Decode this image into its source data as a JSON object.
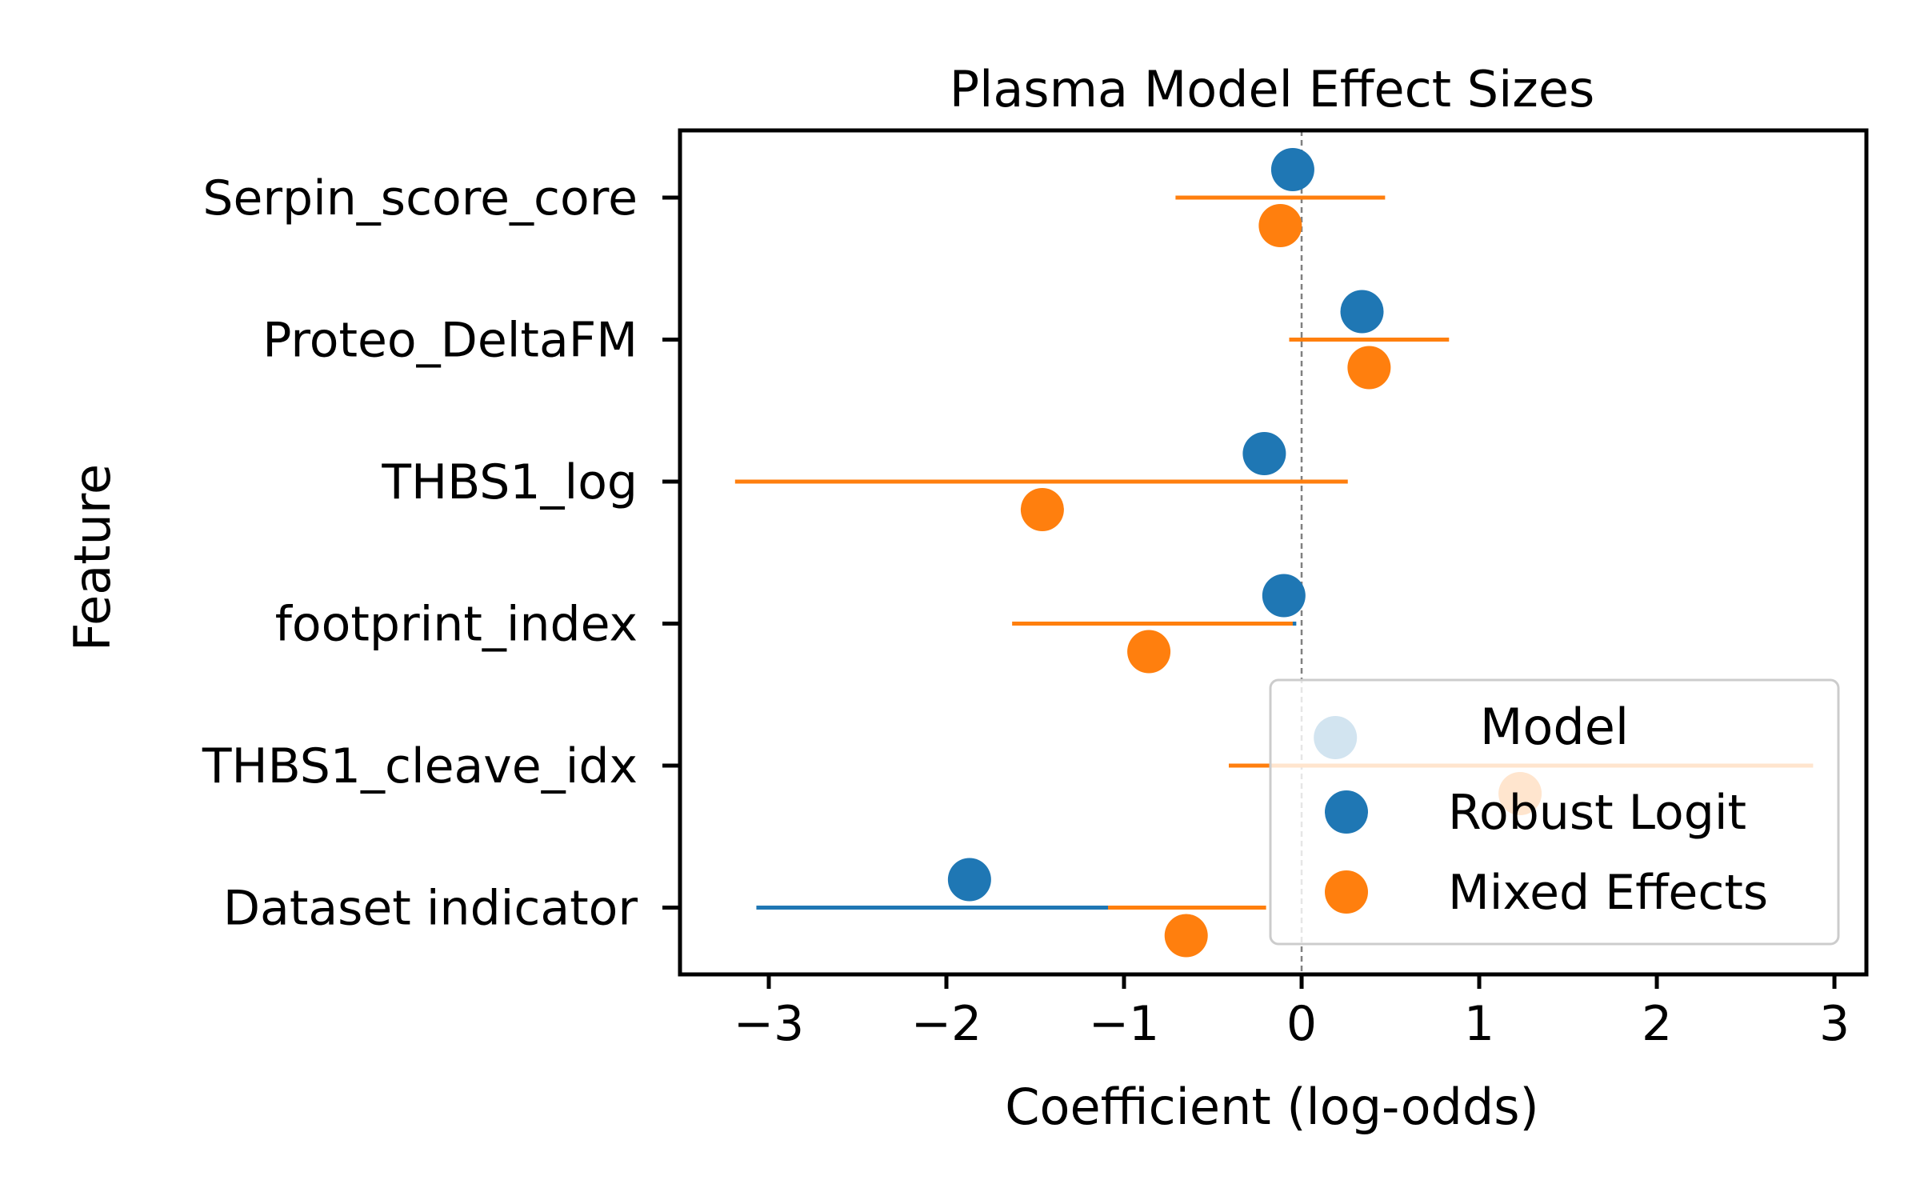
{
  "chart_data": {
    "type": "scatter",
    "title": "Plasma Model Effect Sizes",
    "xlabel": "Coefficient (log-odds)",
    "ylabel": "Feature",
    "xlim": [
      -3.5,
      3.18
    ],
    "xticks": [
      -3,
      -2,
      -1,
      0,
      1,
      2,
      3
    ],
    "xtick_labels": [
      "−3",
      "−2",
      "−1",
      "0",
      "1",
      "2",
      "3"
    ],
    "categories": [
      "Serpin_score_core",
      "Proteo_DeltaFM",
      "THBS1_log",
      "footprint_index",
      "THBS1_cleave_idx",
      "Dataset indicator"
    ],
    "reference_line": {
      "x": 0,
      "style": "dashed",
      "color": "#808080"
    },
    "grid": false,
    "legend": {
      "title": "Model",
      "placement": "lower right"
    },
    "series": [
      {
        "name": "Robust Logit",
        "color": "#1f77b4",
        "values": [
          -0.05,
          0.34,
          -0.21,
          -0.1,
          0.19,
          -1.87
        ],
        "ci_low": [
          -0.08,
          0.3,
          -0.25,
          -0.12,
          0.15,
          -3.07
        ],
        "ci_high": [
          -0.02,
          0.38,
          -0.17,
          -0.03,
          0.23,
          -0.67
        ]
      },
      {
        "name": "Mixed Effects",
        "color": "#ff7f0e",
        "values": [
          -0.12,
          0.38,
          -1.46,
          -0.86,
          1.23,
          -0.65
        ],
        "ci_low": [
          -0.71,
          -0.07,
          -3.19,
          -1.63,
          -0.41,
          -1.09
        ],
        "ci_high": [
          0.47,
          0.83,
          0.26,
          -0.05,
          2.88,
          -0.2
        ]
      }
    ]
  }
}
